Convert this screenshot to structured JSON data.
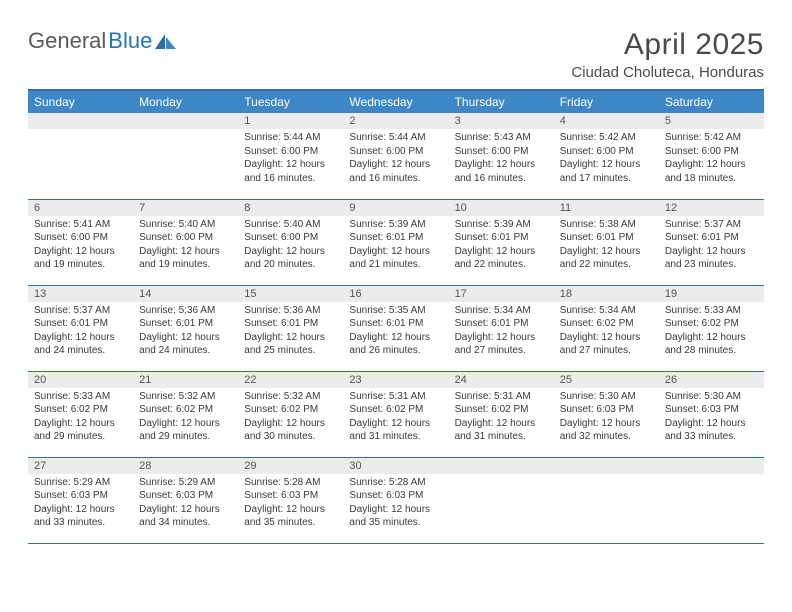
{
  "brand": {
    "part1": "General",
    "part2": "Blue"
  },
  "title": "April 2025",
  "location": "Ciudad Choluteca, Honduras",
  "colors": {
    "header_bg": "#3d87c7",
    "header_text": "#ffffff",
    "rule": "#2f6da3",
    "daynum_bg": "#ececec",
    "text": "#333333",
    "brand_gray": "#5a5a5a",
    "brand_blue": "#2674b9"
  },
  "weekdays": [
    "Sunday",
    "Monday",
    "Tuesday",
    "Wednesday",
    "Thursday",
    "Friday",
    "Saturday"
  ],
  "weeks": [
    [
      {
        "n": "",
        "lines": []
      },
      {
        "n": "",
        "lines": []
      },
      {
        "n": "1",
        "lines": [
          "Sunrise: 5:44 AM",
          "Sunset: 6:00 PM",
          "Daylight: 12 hours and 16 minutes."
        ]
      },
      {
        "n": "2",
        "lines": [
          "Sunrise: 5:44 AM",
          "Sunset: 6:00 PM",
          "Daylight: 12 hours and 16 minutes."
        ]
      },
      {
        "n": "3",
        "lines": [
          "Sunrise: 5:43 AM",
          "Sunset: 6:00 PM",
          "Daylight: 12 hours and 16 minutes."
        ]
      },
      {
        "n": "4",
        "lines": [
          "Sunrise: 5:42 AM",
          "Sunset: 6:00 PM",
          "Daylight: 12 hours and 17 minutes."
        ]
      },
      {
        "n": "5",
        "lines": [
          "Sunrise: 5:42 AM",
          "Sunset: 6:00 PM",
          "Daylight: 12 hours and 18 minutes."
        ]
      }
    ],
    [
      {
        "n": "6",
        "lines": [
          "Sunrise: 5:41 AM",
          "Sunset: 6:00 PM",
          "Daylight: 12 hours and 19 minutes."
        ]
      },
      {
        "n": "7",
        "lines": [
          "Sunrise: 5:40 AM",
          "Sunset: 6:00 PM",
          "Daylight: 12 hours and 19 minutes."
        ]
      },
      {
        "n": "8",
        "lines": [
          "Sunrise: 5:40 AM",
          "Sunset: 6:00 PM",
          "Daylight: 12 hours and 20 minutes."
        ]
      },
      {
        "n": "9",
        "lines": [
          "Sunrise: 5:39 AM",
          "Sunset: 6:01 PM",
          "Daylight: 12 hours and 21 minutes."
        ]
      },
      {
        "n": "10",
        "lines": [
          "Sunrise: 5:39 AM",
          "Sunset: 6:01 PM",
          "Daylight: 12 hours and 22 minutes."
        ]
      },
      {
        "n": "11",
        "lines": [
          "Sunrise: 5:38 AM",
          "Sunset: 6:01 PM",
          "Daylight: 12 hours and 22 minutes."
        ]
      },
      {
        "n": "12",
        "lines": [
          "Sunrise: 5:37 AM",
          "Sunset: 6:01 PM",
          "Daylight: 12 hours and 23 minutes."
        ]
      }
    ],
    [
      {
        "n": "13",
        "lines": [
          "Sunrise: 5:37 AM",
          "Sunset: 6:01 PM",
          "Daylight: 12 hours and 24 minutes."
        ]
      },
      {
        "n": "14",
        "lines": [
          "Sunrise: 5:36 AM",
          "Sunset: 6:01 PM",
          "Daylight: 12 hours and 24 minutes."
        ]
      },
      {
        "n": "15",
        "lines": [
          "Sunrise: 5:36 AM",
          "Sunset: 6:01 PM",
          "Daylight: 12 hours and 25 minutes."
        ]
      },
      {
        "n": "16",
        "lines": [
          "Sunrise: 5:35 AM",
          "Sunset: 6:01 PM",
          "Daylight: 12 hours and 26 minutes."
        ]
      },
      {
        "n": "17",
        "lines": [
          "Sunrise: 5:34 AM",
          "Sunset: 6:01 PM",
          "Daylight: 12 hours and 27 minutes."
        ]
      },
      {
        "n": "18",
        "lines": [
          "Sunrise: 5:34 AM",
          "Sunset: 6:02 PM",
          "Daylight: 12 hours and 27 minutes."
        ]
      },
      {
        "n": "19",
        "lines": [
          "Sunrise: 5:33 AM",
          "Sunset: 6:02 PM",
          "Daylight: 12 hours and 28 minutes."
        ]
      }
    ],
    [
      {
        "n": "20",
        "lines": [
          "Sunrise: 5:33 AM",
          "Sunset: 6:02 PM",
          "Daylight: 12 hours and 29 minutes."
        ]
      },
      {
        "n": "21",
        "lines": [
          "Sunrise: 5:32 AM",
          "Sunset: 6:02 PM",
          "Daylight: 12 hours and 29 minutes."
        ]
      },
      {
        "n": "22",
        "lines": [
          "Sunrise: 5:32 AM",
          "Sunset: 6:02 PM",
          "Daylight: 12 hours and 30 minutes."
        ]
      },
      {
        "n": "23",
        "lines": [
          "Sunrise: 5:31 AM",
          "Sunset: 6:02 PM",
          "Daylight: 12 hours and 31 minutes."
        ]
      },
      {
        "n": "24",
        "lines": [
          "Sunrise: 5:31 AM",
          "Sunset: 6:02 PM",
          "Daylight: 12 hours and 31 minutes."
        ]
      },
      {
        "n": "25",
        "lines": [
          "Sunrise: 5:30 AM",
          "Sunset: 6:03 PM",
          "Daylight: 12 hours and 32 minutes."
        ]
      },
      {
        "n": "26",
        "lines": [
          "Sunrise: 5:30 AM",
          "Sunset: 6:03 PM",
          "Daylight: 12 hours and 33 minutes."
        ]
      }
    ],
    [
      {
        "n": "27",
        "lines": [
          "Sunrise: 5:29 AM",
          "Sunset: 6:03 PM",
          "Daylight: 12 hours and 33 minutes."
        ]
      },
      {
        "n": "28",
        "lines": [
          "Sunrise: 5:29 AM",
          "Sunset: 6:03 PM",
          "Daylight: 12 hours and 34 minutes."
        ]
      },
      {
        "n": "29",
        "lines": [
          "Sunrise: 5:28 AM",
          "Sunset: 6:03 PM",
          "Daylight: 12 hours and 35 minutes."
        ]
      },
      {
        "n": "30",
        "lines": [
          "Sunrise: 5:28 AM",
          "Sunset: 6:03 PM",
          "Daylight: 12 hours and 35 minutes."
        ]
      },
      {
        "n": "",
        "lines": []
      },
      {
        "n": "",
        "lines": []
      },
      {
        "n": "",
        "lines": []
      }
    ]
  ]
}
